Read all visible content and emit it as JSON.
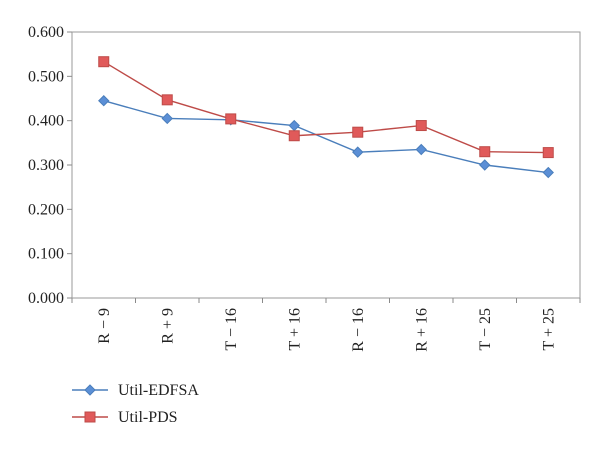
{
  "chart_data": {
    "type": "line",
    "categories": [
      "R − 9",
      "R + 9",
      "T − 16",
      "T + 16",
      "R − 16",
      "R + 16",
      "T − 25",
      "T + 25"
    ],
    "series": [
      {
        "name": "Util-EDFSA",
        "color": "#4a7ebb",
        "marker": "diamond",
        "marker_fill": "#5b8fd6",
        "values": [
          0.445,
          0.405,
          0.402,
          0.389,
          0.329,
          0.335,
          0.3,
          0.283
        ]
      },
      {
        "name": "Util-PDS",
        "color": "#be4b48",
        "marker": "square",
        "marker_fill": "#e05a5a",
        "values": [
          0.533,
          0.447,
          0.404,
          0.366,
          0.374,
          0.389,
          0.33,
          0.328
        ]
      }
    ],
    "ylim": [
      0,
      0.6
    ],
    "yticks": [
      "0.000",
      "0.100",
      "0.200",
      "0.300",
      "0.400",
      "0.500",
      "0.600"
    ],
    "grid": false,
    "legend_position": "bottom-left",
    "title": "",
    "xlabel": "",
    "ylabel": ""
  }
}
